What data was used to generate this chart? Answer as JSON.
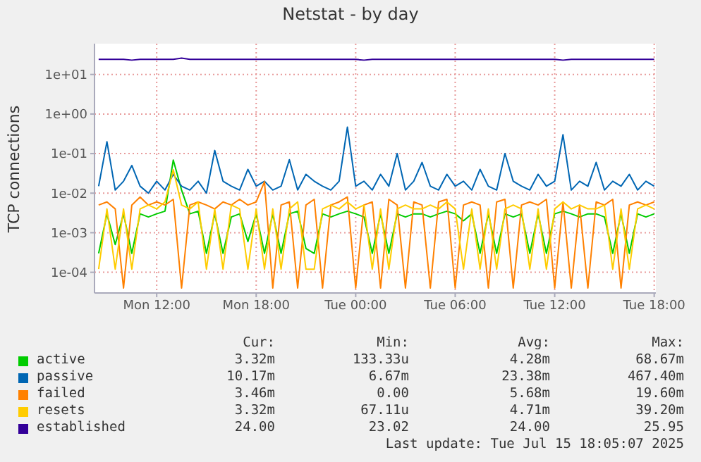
{
  "chart_data": {
    "type": "line",
    "title": "Netstat - by day",
    "ylabel": "TCP connections",
    "x": [
      "2025-07-14T08:30",
      "2025-07-14T09:00",
      "2025-07-14T09:30",
      "2025-07-14T10:00",
      "2025-07-14T10:30",
      "2025-07-14T11:00",
      "2025-07-14T11:30",
      "2025-07-14T12:00",
      "2025-07-14T12:30",
      "2025-07-14T13:00",
      "2025-07-14T13:30",
      "2025-07-14T14:00",
      "2025-07-14T14:30",
      "2025-07-14T15:00",
      "2025-07-14T15:30",
      "2025-07-14T16:00",
      "2025-07-14T16:30",
      "2025-07-14T17:00",
      "2025-07-14T17:30",
      "2025-07-14T18:00",
      "2025-07-14T18:30",
      "2025-07-14T19:00",
      "2025-07-14T19:30",
      "2025-07-14T20:00",
      "2025-07-14T20:30",
      "2025-07-14T21:00",
      "2025-07-14T21:30",
      "2025-07-14T22:00",
      "2025-07-14T22:30",
      "2025-07-14T23:00",
      "2025-07-14T23:30",
      "2025-07-15T00:00",
      "2025-07-15T00:30",
      "2025-07-15T01:00",
      "2025-07-15T01:30",
      "2025-07-15T02:00",
      "2025-07-15T02:30",
      "2025-07-15T03:00",
      "2025-07-15T03:30",
      "2025-07-15T04:00",
      "2025-07-15T04:30",
      "2025-07-15T05:00",
      "2025-07-15T05:30",
      "2025-07-15T06:00",
      "2025-07-15T06:30",
      "2025-07-15T07:00",
      "2025-07-15T07:30",
      "2025-07-15T08:00",
      "2025-07-15T08:30",
      "2025-07-15T09:00",
      "2025-07-15T09:30",
      "2025-07-15T10:00",
      "2025-07-15T10:30",
      "2025-07-15T11:00",
      "2025-07-15T11:30",
      "2025-07-15T12:00",
      "2025-07-15T12:30",
      "2025-07-15T13:00",
      "2025-07-15T13:30",
      "2025-07-15T14:00",
      "2025-07-15T14:30",
      "2025-07-15T15:00",
      "2025-07-15T15:30",
      "2025-07-15T16:00",
      "2025-07-15T16:30",
      "2025-07-15T17:00",
      "2025-07-15T17:30",
      "2025-07-15T18:00"
    ],
    "xlim": [
      "2025-07-14T08:15",
      "2025-07-15T18:06"
    ],
    "xticks": [
      {
        "value": "2025-07-14T12:00",
        "label": "Mon 12:00"
      },
      {
        "value": "2025-07-14T18:00",
        "label": "Mon 18:00"
      },
      {
        "value": "2025-07-15T00:00",
        "label": "Tue 00:00"
      },
      {
        "value": "2025-07-15T06:00",
        "label": "Tue 06:00"
      },
      {
        "value": "2025-07-15T12:00",
        "label": "Tue 12:00"
      },
      {
        "value": "2025-07-15T18:00",
        "label": "Tue 18:00"
      }
    ],
    "log": "y",
    "ylim": [
      3e-05,
      60
    ],
    "yticks": [
      {
        "value": 0.0001,
        "label": "1e-04"
      },
      {
        "value": 0.001,
        "label": "1e-03"
      },
      {
        "value": 0.01,
        "label": "1e-02"
      },
      {
        "value": 0.1,
        "label": "1e-01"
      },
      {
        "value": 1,
        "label": "1e+00"
      },
      {
        "value": 10,
        "label": "1e+01"
      }
    ],
    "grid": true,
    "legend": "bottom left",
    "series": [
      {
        "name": "active",
        "color": "#00cc00",
        "values": [
          0.0003,
          0.003,
          0.0005,
          0.003,
          0.0003,
          0.003,
          0.0025,
          0.003,
          0.0035,
          0.0687,
          0.012,
          0.003,
          0.0035,
          0.0003,
          0.003,
          0.0003,
          0.0025,
          0.003,
          0.0006,
          0.003,
          0.0003,
          0.003,
          0.0003,
          0.003,
          0.0035,
          0.0004,
          0.0003,
          0.003,
          0.0025,
          0.003,
          0.0035,
          0.003,
          0.0025,
          0.0003,
          0.003,
          0.0003,
          0.003,
          0.0025,
          0.003,
          0.003,
          0.0025,
          0.003,
          0.0035,
          0.003,
          0.002,
          0.003,
          0.0003,
          0.003,
          0.0003,
          0.003,
          0.0025,
          0.003,
          0.0003,
          0.003,
          0.0003,
          0.003,
          0.0035,
          0.003,
          0.0025,
          0.003,
          0.003,
          0.0025,
          0.0003,
          0.003,
          0.0003,
          0.003,
          0.0025,
          0.003
        ]
      },
      {
        "name": "passive",
        "color": "#0066b3",
        "values": [
          0.015,
          0.2,
          0.012,
          0.02,
          0.05,
          0.015,
          0.01,
          0.02,
          0.012,
          0.03,
          0.015,
          0.012,
          0.02,
          0.01,
          0.12,
          0.02,
          0.015,
          0.012,
          0.04,
          0.015,
          0.02,
          0.012,
          0.015,
          0.07,
          0.012,
          0.03,
          0.02,
          0.015,
          0.012,
          0.02,
          0.467,
          0.015,
          0.02,
          0.012,
          0.03,
          0.015,
          0.1,
          0.012,
          0.02,
          0.06,
          0.015,
          0.012,
          0.03,
          0.015,
          0.02,
          0.012,
          0.04,
          0.015,
          0.012,
          0.1,
          0.02,
          0.015,
          0.012,
          0.03,
          0.015,
          0.02,
          0.3,
          0.012,
          0.02,
          0.015,
          0.06,
          0.012,
          0.02,
          0.015,
          0.03,
          0.012,
          0.02,
          0.015
        ]
      },
      {
        "name": "failed",
        "color": "#ff8000",
        "values": [
          0.005,
          0.006,
          0.004,
          4e-05,
          0.005,
          0.008,
          0.005,
          0.006,
          0.005,
          0.007,
          4e-05,
          0.005,
          0.006,
          0.005,
          0.004,
          0.006,
          0.005,
          0.007,
          0.005,
          0.006,
          0.0196,
          4e-05,
          0.005,
          0.006,
          4e-05,
          0.005,
          0.007,
          4e-05,
          0.005,
          0.006,
          0.008,
          4e-05,
          0.005,
          0.006,
          4e-05,
          0.007,
          0.005,
          4e-05,
          0.006,
          0.005,
          4e-05,
          0.006,
          0.007,
          4e-05,
          0.005,
          0.006,
          0.005,
          4e-05,
          0.006,
          0.007,
          4e-05,
          0.005,
          0.006,
          0.005,
          0.007,
          4e-05,
          0.006,
          4e-05,
          0.005,
          4e-05,
          0.006,
          0.005,
          0.007,
          4e-05,
          0.005,
          0.006,
          0.005,
          0.006
        ]
      },
      {
        "name": "resets",
        "color": "#ffcc00",
        "values": [
          0.00012,
          0.004,
          0.00012,
          0.004,
          0.00012,
          0.004,
          0.005,
          0.004,
          0.006,
          0.039,
          0.005,
          0.004,
          0.006,
          0.00012,
          0.004,
          0.00012,
          0.005,
          0.004,
          0.00012,
          0.004,
          0.00012,
          0.004,
          0.00012,
          0.004,
          0.006,
          0.00012,
          0.00012,
          0.004,
          0.005,
          0.004,
          0.006,
          0.004,
          0.005,
          0.00012,
          0.004,
          0.00012,
          0.004,
          0.005,
          0.004,
          0.004,
          0.005,
          0.004,
          0.006,
          0.004,
          0.00012,
          0.004,
          0.00012,
          0.004,
          0.00012,
          0.004,
          0.005,
          0.004,
          0.00012,
          0.004,
          0.00012,
          0.004,
          0.006,
          0.004,
          0.005,
          0.004,
          0.004,
          0.005,
          0.00012,
          0.004,
          0.00012,
          0.004,
          0.005,
          0.004
        ]
      },
      {
        "name": "established",
        "color": "#330099",
        "values": [
          24,
          24,
          24,
          24,
          23.02,
          24,
          24,
          24,
          24,
          24,
          25.95,
          24,
          24,
          24,
          24,
          24,
          24,
          24,
          24,
          24,
          24,
          24,
          24,
          24,
          24,
          24,
          24,
          24,
          24,
          24,
          24,
          24,
          23.02,
          24,
          24,
          24,
          24,
          24,
          24,
          24,
          24,
          24,
          24,
          24,
          24,
          24,
          24,
          24,
          24,
          24,
          24,
          24,
          24,
          24,
          24,
          24,
          23.02,
          24,
          24,
          24,
          24,
          24,
          24,
          24,
          24,
          24,
          24,
          24
        ]
      }
    ],
    "annotations": [
      "Cur:",
      "Min:",
      "Avg:",
      "Max:",
      "3.32m",
      "133.33u",
      "4.28m",
      "68.67m",
      "10.17m",
      "6.67m",
      "23.38m",
      "467.40m",
      "3.46m",
      "0.00",
      "5.68m",
      "19.60m",
      "3.32m",
      "67.11u",
      "4.71m",
      "39.20m",
      "24.00",
      "23.02",
      "24.00",
      "25.95",
      "Last update: Tue Jul 15 18:05:07 2025"
    ]
  }
}
